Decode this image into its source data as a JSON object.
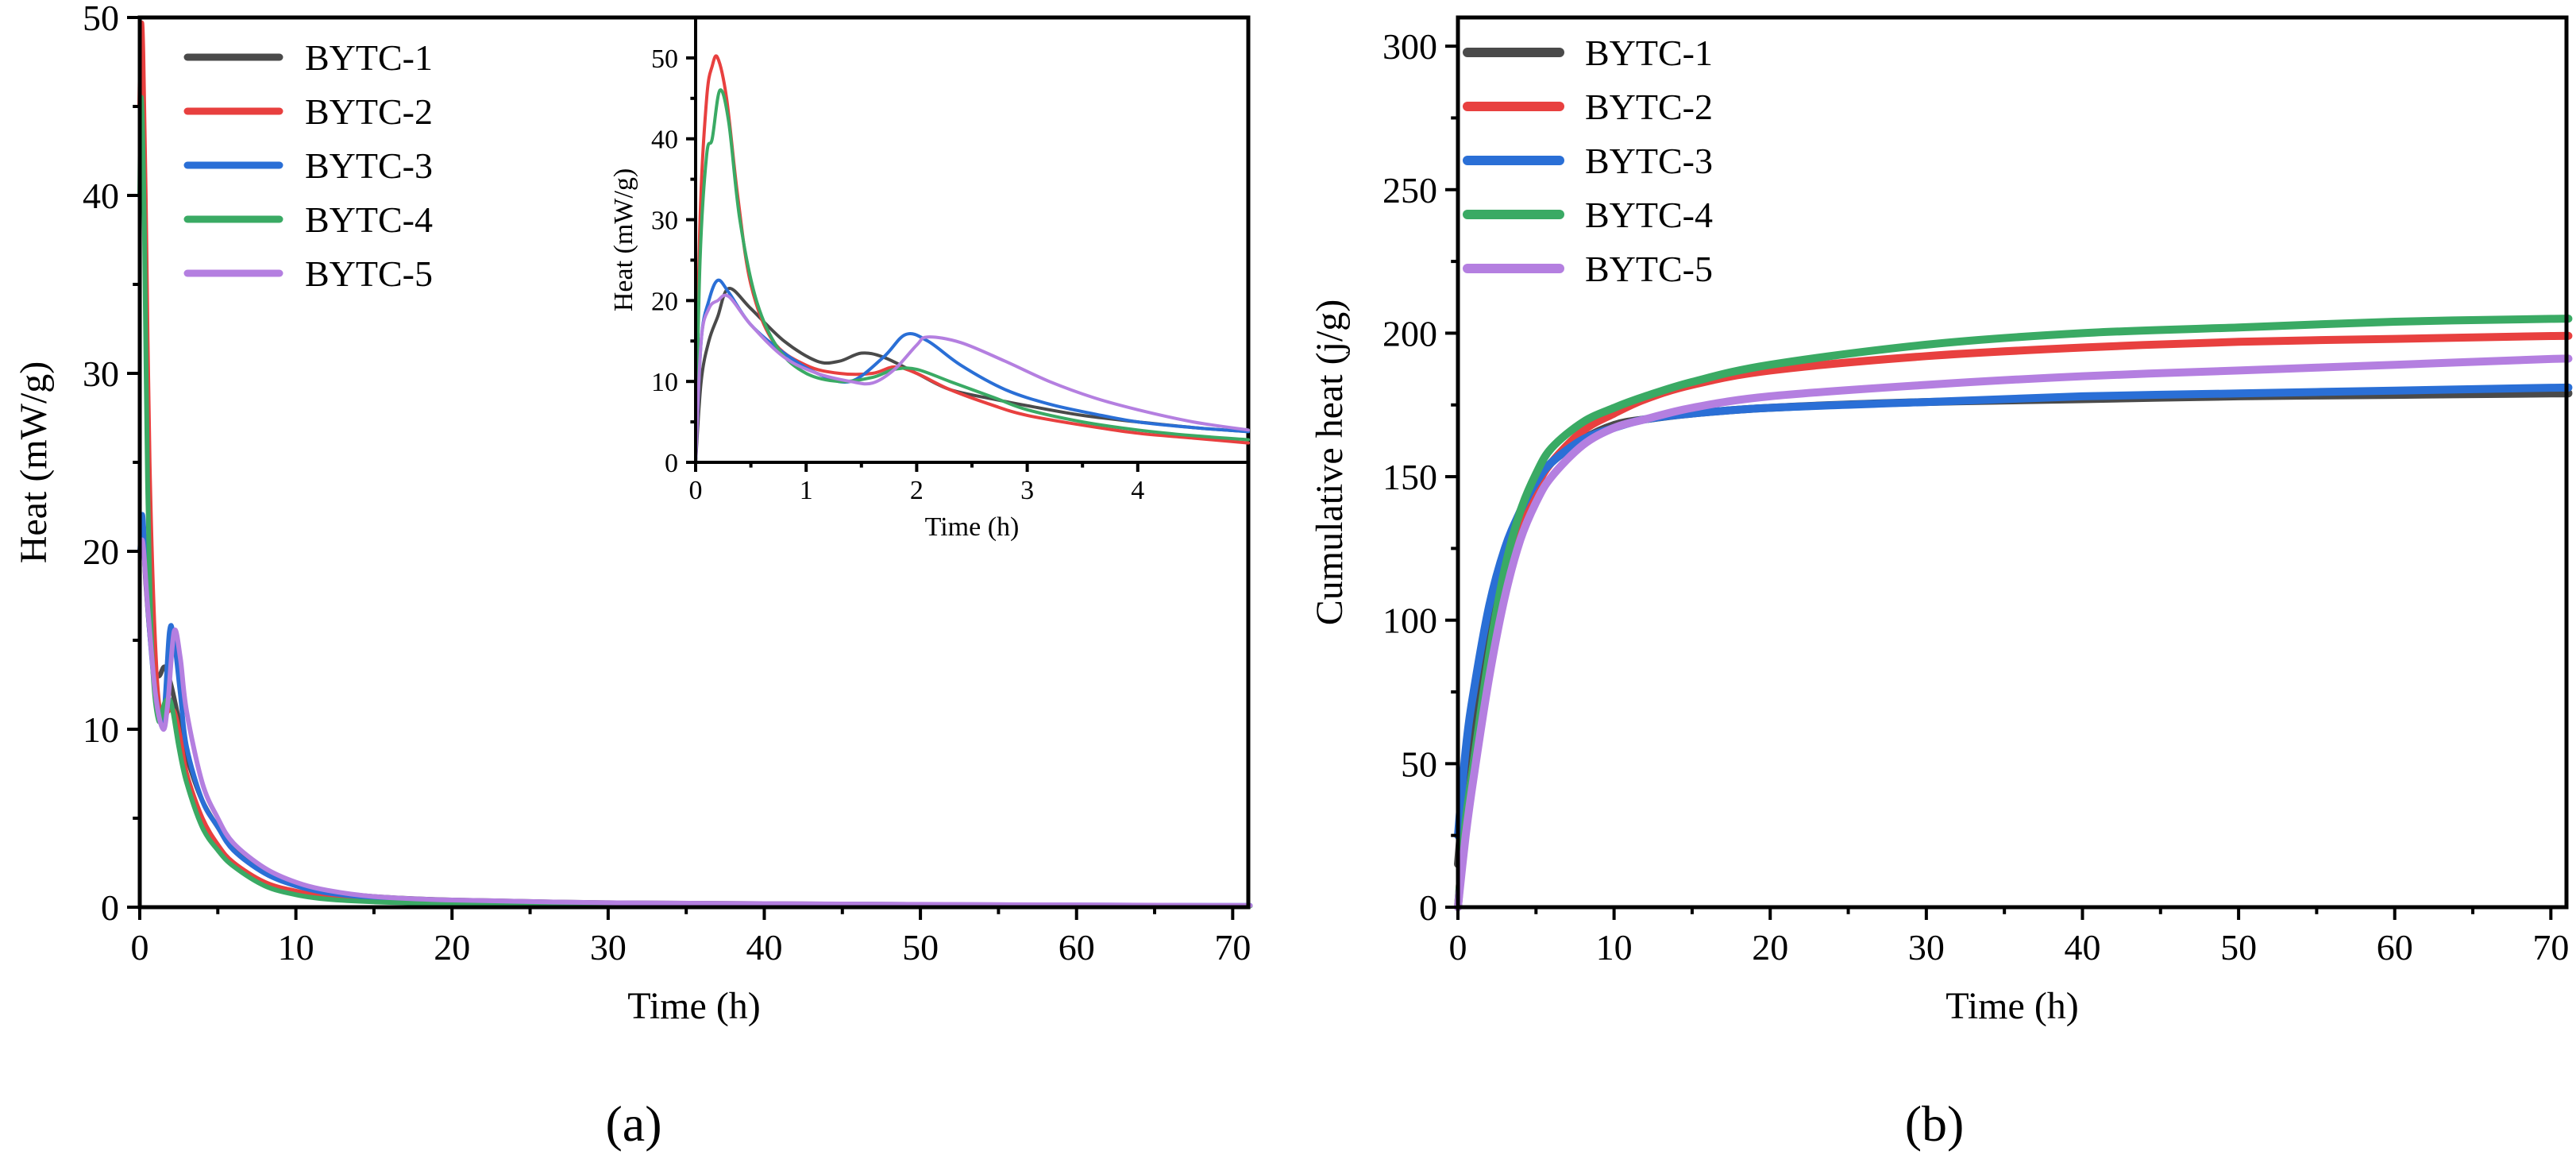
{
  "colors": {
    "BYTC-1": "#4a4a4a",
    "BYTC-2": "#e8403f",
    "BYTC-3": "#2a6fd6",
    "BYTC-4": "#3aaa64",
    "BYTC-5": "#b47fe0"
  },
  "labels": {
    "panel_a": "(a)",
    "panel_b": "(b)"
  },
  "chart_data": [
    {
      "id": "a",
      "type": "line",
      "xlabel": "Time (h)",
      "ylabel": "Heat (mW/g)",
      "xlim": [
        0,
        71
      ],
      "ylim": [
        0,
        50
      ],
      "xticks": [
        0,
        10,
        20,
        30,
        40,
        50,
        60,
        70
      ],
      "yticks": [
        0,
        10,
        20,
        30,
        40,
        50
      ],
      "grid": false,
      "legend": "top-left",
      "series": [
        {
          "name": "BYTC-1",
          "x": [
            0,
            0.2,
            0.4,
            0.8,
            1.2,
            1.6,
            2.0,
            2.5,
            3,
            4,
            5,
            6,
            8,
            10,
            12,
            15,
            20,
            30,
            40,
            50,
            60,
            70,
            71
          ],
          "y": [
            20,
            21,
            18,
            14,
            13,
            13.5,
            12.5,
            10.5,
            8.5,
            6,
            4.5,
            3.3,
            2,
            1.3,
            0.9,
            0.6,
            0.4,
            0.25,
            0.2,
            0.15,
            0.1,
            0.08,
            0.08
          ]
        },
        {
          "name": "BYTC-2",
          "x": [
            0,
            0.1,
            0.2,
            0.35,
            0.6,
            1.0,
            1.4,
            1.8,
            2.2,
            2.6,
            3,
            4,
            5,
            6,
            8,
            10,
            12,
            15,
            20,
            30,
            40,
            50,
            60,
            70,
            71
          ],
          "y": [
            45,
            49.5,
            48,
            40,
            25,
            14,
            10.5,
            11,
            11,
            9.5,
            7.5,
            5,
            3.5,
            2.5,
            1.4,
            0.9,
            0.6,
            0.4,
            0.3,
            0.2,
            0.15,
            0.12,
            0.1,
            0.08,
            0.08
          ]
        },
        {
          "name": "BYTC-3",
          "x": [
            0,
            0.2,
            0.5,
            1.0,
            1.5,
            1.9,
            2.2,
            2.6,
            3,
            4,
            5,
            6,
            8,
            10,
            12,
            15,
            20,
            30,
            40,
            50,
            60,
            70,
            71
          ],
          "y": [
            20,
            22,
            17,
            12,
            10.5,
            15.5,
            15,
            12,
            9,
            6,
            4.5,
            3.2,
            1.9,
            1.2,
            0.8,
            0.55,
            0.35,
            0.22,
            0.18,
            0.15,
            0.12,
            0.1,
            0.1
          ]
        },
        {
          "name": "BYTC-4",
          "x": [
            0,
            0.1,
            0.3,
            0.5,
            0.8,
            1.2,
            1.6,
            2.0,
            2.5,
            3,
            4,
            5,
            6,
            8,
            10,
            12,
            15,
            20,
            30,
            40,
            50,
            60,
            70,
            71
          ],
          "y": [
            40,
            45.5,
            38,
            24,
            14,
            10.5,
            11.5,
            11.5,
            9,
            7,
            4.5,
            3.2,
            2.3,
            1.2,
            0.7,
            0.45,
            0.3,
            0.2,
            0.15,
            0.12,
            0.1,
            0.08,
            0.07,
            0.07
          ]
        },
        {
          "name": "BYTC-5",
          "x": [
            0,
            0.2,
            0.5,
            1.0,
            1.5,
            1.8,
            2.2,
            2.6,
            3,
            4,
            5,
            6,
            8,
            10,
            12,
            15,
            20,
            30,
            40,
            50,
            60,
            70,
            71
          ],
          "y": [
            20,
            20.5,
            17,
            12,
            10,
            11.5,
            15.5,
            14,
            11,
            7,
            5,
            3.6,
            2.2,
            1.4,
            0.95,
            0.6,
            0.4,
            0.25,
            0.2,
            0.16,
            0.13,
            0.1,
            0.1
          ]
        }
      ],
      "inset": {
        "xlabel": "Time (h)",
        "ylabel": "Heat (mW/g)",
        "xlim": [
          0,
          5
        ],
        "ylim": [
          0,
          55
        ],
        "xticks": [
          0,
          1,
          2,
          3,
          4
        ],
        "yticks": [
          0,
          10,
          20,
          30,
          40,
          50
        ],
        "series": [
          {
            "name": "BYTC-1",
            "x": [
              0,
              0.05,
              0.12,
              0.2,
              0.3,
              0.5,
              0.8,
              1.1,
              1.3,
              1.5,
              1.7,
              2.0,
              2.3,
              2.7,
              3,
              3.5,
              4,
              4.5,
              5
            ],
            "y": [
              0,
              10,
              15,
              18,
              21.5,
              19,
              15,
              12.5,
              12.5,
              13.5,
              13,
              11,
              9,
              7.8,
              7,
              5.8,
              5,
              4.3,
              3.8
            ]
          },
          {
            "name": "BYTC-2",
            "x": [
              0,
              0.04,
              0.1,
              0.15,
              0.2,
              0.28,
              0.38,
              0.5,
              0.7,
              1.0,
              1.3,
              1.6,
              1.8,
              2.0,
              2.3,
              2.7,
              3,
              3.5,
              4,
              4.5,
              5
            ],
            "y": [
              0,
              30,
              45,
              49,
              50,
              45,
              33,
              22,
              15,
              12,
              11,
              11,
              11.8,
              11,
              9,
              7,
              5.8,
              4.6,
              3.6,
              3,
              2.4
            ]
          },
          {
            "name": "BYTC-3",
            "x": [
              0,
              0.05,
              0.12,
              0.2,
              0.3,
              0.5,
              0.8,
              1.1,
              1.4,
              1.7,
              1.9,
              2.1,
              2.4,
              2.8,
              3.2,
              3.6,
              4,
              4.5,
              5
            ],
            "y": [
              0,
              15,
              20,
              22.5,
              21,
              17,
              13.5,
              11,
              10,
              13,
              15.8,
              15,
              12,
              9,
              7.2,
              6,
              5,
              4.3,
              3.8
            ]
          },
          {
            "name": "BYTC-4",
            "x": [
              0,
              0.04,
              0.1,
              0.15,
              0.22,
              0.3,
              0.4,
              0.55,
              0.75,
              1.0,
              1.3,
              1.6,
              1.8,
              2.0,
              2.3,
              2.7,
              3,
              3.5,
              4,
              4.5,
              5
            ],
            "y": [
              0,
              25,
              38,
              40,
              46,
              42,
              30,
              20,
              14,
              11,
              10,
              10.5,
              11.5,
              11.5,
              10,
              8,
              6.5,
              5,
              4,
              3.3,
              2.8
            ]
          },
          {
            "name": "BYTC-5",
            "x": [
              0,
              0.05,
              0.12,
              0.2,
              0.3,
              0.5,
              0.8,
              1.1,
              1.4,
              1.6,
              1.8,
              2.0,
              2.1,
              2.4,
              2.8,
              3.2,
              3.6,
              4,
              4.5,
              5
            ],
            "y": [
              0,
              15,
              19,
              20,
              20.5,
              17,
              13,
              11,
              10,
              9.8,
              11.5,
              14.5,
              15.5,
              14.8,
              12.5,
              10,
              8,
              6.5,
              5,
              4
            ]
          }
        ]
      }
    },
    {
      "id": "b",
      "type": "line",
      "xlabel": "Time (h)",
      "ylabel": "Cumulative heat (j/g)",
      "xlim": [
        0,
        71
      ],
      "ylim": [
        0,
        310
      ],
      "xticks": [
        0,
        10,
        20,
        30,
        40,
        50,
        60,
        70
      ],
      "yticks": [
        0,
        50,
        100,
        150,
        200,
        250,
        300
      ],
      "grid": false,
      "legend": "top-left",
      "series": [
        {
          "name": "BYTC-1",
          "x": [
            0,
            0.5,
            1,
            2,
            3,
            4,
            5,
            6,
            8,
            10,
            12,
            15,
            20,
            30,
            40,
            50,
            60,
            70,
            71
          ],
          "y": [
            15,
            45,
            65,
            100,
            122,
            138,
            148,
            155,
            163,
            168,
            170,
            172,
            174,
            176,
            177,
            178,
            178.5,
            179,
            179
          ]
        },
        {
          "name": "BYTC-2",
          "x": [
            0,
            0.5,
            1,
            2,
            3,
            4,
            5,
            6,
            8,
            10,
            12,
            15,
            20,
            30,
            40,
            50,
            60,
            70,
            71
          ],
          "y": [
            0,
            30,
            50,
            85,
            112,
            132,
            146,
            155,
            166,
            172,
            177,
            182,
            187,
            192,
            195,
            197,
            198,
            199,
            199
          ]
        },
        {
          "name": "BYTC-3",
          "x": [
            0,
            0.5,
            1,
            2,
            3,
            4,
            5,
            6,
            8,
            10,
            12,
            15,
            20,
            30,
            40,
            50,
            60,
            70,
            71
          ],
          "y": [
            25,
            55,
            75,
            105,
            125,
            138,
            148,
            155,
            163,
            167,
            170,
            172,
            174,
            176,
            178,
            179,
            180,
            181,
            181
          ]
        },
        {
          "name": "BYTC-4",
          "x": [
            0,
            0.5,
            1,
            2,
            3,
            4,
            5,
            6,
            8,
            10,
            12,
            15,
            20,
            30,
            40,
            50,
            60,
            70,
            71
          ],
          "y": [
            0,
            30,
            50,
            88,
            118,
            138,
            151,
            160,
            169,
            174,
            178,
            183,
            189,
            196,
            200,
            202,
            204,
            205,
            205
          ]
        },
        {
          "name": "BYTC-5",
          "x": [
            0,
            0.5,
            1,
            2,
            3,
            4,
            5,
            6,
            8,
            10,
            12,
            15,
            20,
            30,
            40,
            50,
            60,
            70,
            71
          ],
          "y": [
            0,
            25,
            45,
            80,
            108,
            128,
            141,
            150,
            161,
            167,
            170,
            174,
            178,
            182,
            185,
            187,
            189,
            191,
            191
          ]
        }
      ]
    }
  ]
}
